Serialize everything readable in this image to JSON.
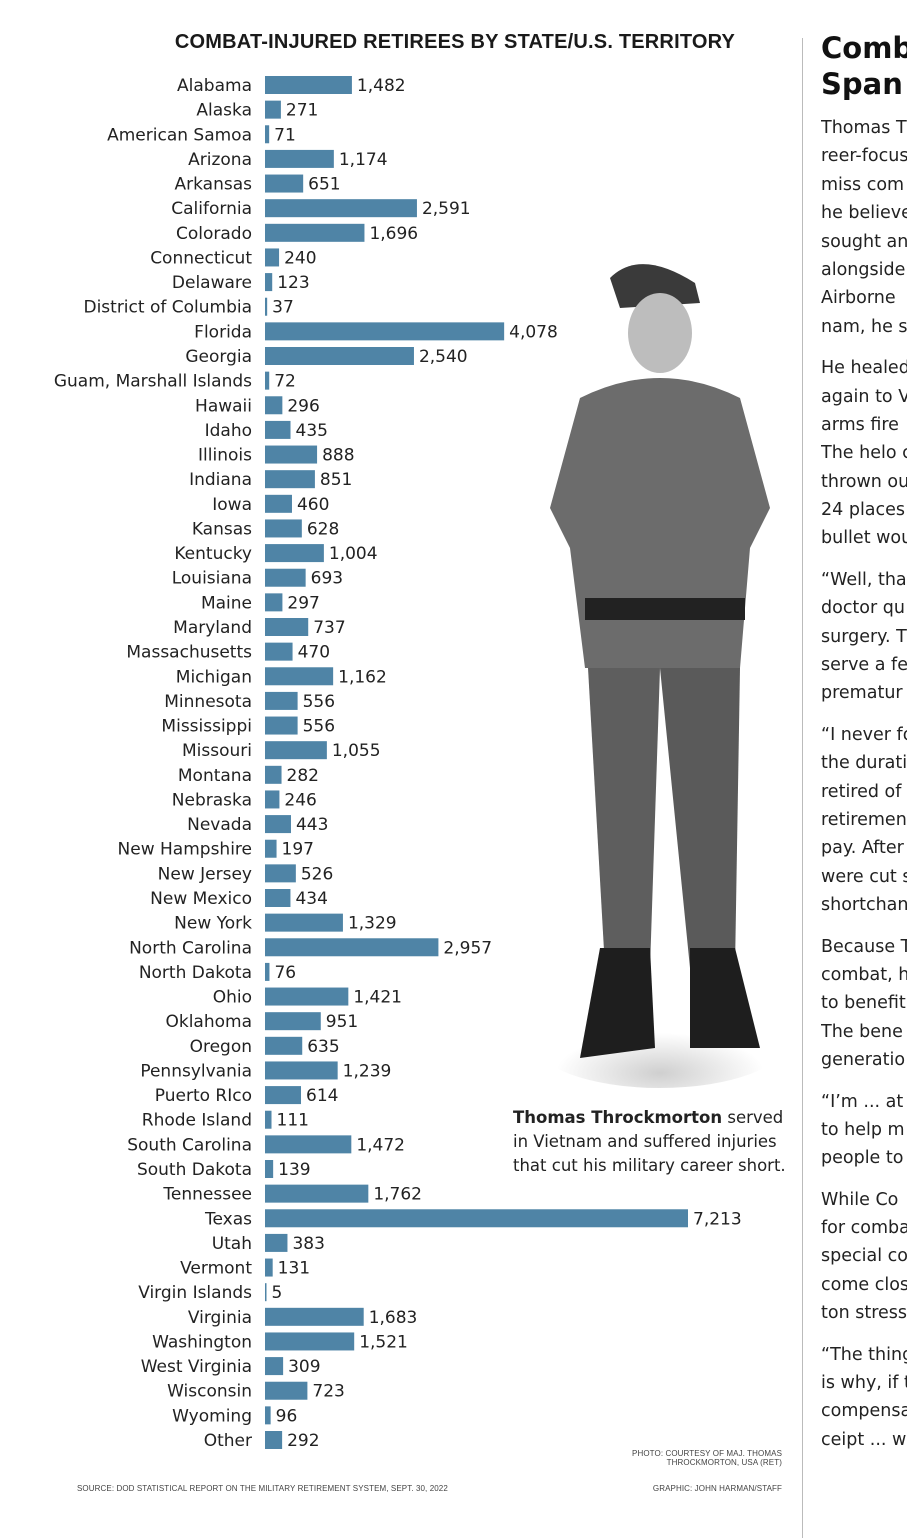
{
  "chart_data": {
    "type": "bar",
    "orientation": "horizontal",
    "title": "COMBAT-INJURED RETIREES BY STATE/U.S. TERRITORY",
    "bar_color": "#4f84a6",
    "categories": [
      "Alabama",
      "Alaska",
      "American Samoa",
      "Arizona",
      "Arkansas",
      "California",
      "Colorado",
      "Connecticut",
      "Delaware",
      "District of Columbia",
      "Florida",
      "Georgia",
      "Guam, Marshall Islands",
      "Hawaii",
      "Idaho",
      "Illinois",
      "Indiana",
      "Iowa",
      "Kansas",
      "Kentucky",
      "Louisiana",
      "Maine",
      "Maryland",
      "Massachusetts",
      "Michigan",
      "Minnesota",
      "Mississippi",
      "Missouri",
      "Montana",
      "Nebraska",
      "Nevada",
      "New Hampshire",
      "New Jersey",
      "New Mexico",
      "New York",
      "North Carolina",
      "North Dakota",
      "Ohio",
      "Oklahoma",
      "Oregon",
      "Pennsylvania",
      "Puerto RIco",
      "Rhode Island",
      "South Carolina",
      "South Dakota",
      "Tennessee",
      "Texas",
      "Utah",
      "Vermont",
      "Virgin Islands",
      "Virginia",
      "Washington",
      "West Virginia",
      "Wisconsin",
      "Wyoming",
      "Other"
    ],
    "values": [
      1482,
      271,
      71,
      1174,
      651,
      2591,
      1696,
      240,
      123,
      37,
      4078,
      2540,
      72,
      296,
      435,
      888,
      851,
      460,
      628,
      1004,
      693,
      297,
      737,
      470,
      1162,
      556,
      556,
      1055,
      282,
      246,
      443,
      197,
      526,
      434,
      1329,
      2957,
      76,
      1421,
      951,
      635,
      1239,
      614,
      111,
      1472,
      139,
      1762,
      7213,
      383,
      131,
      5,
      1683,
      1521,
      309,
      723,
      96,
      292
    ],
    "value_labels": [
      "1,482",
      "271",
      "71",
      "1,174",
      "651",
      "2,591",
      "1,696",
      "240",
      "123",
      "37",
      "4,078",
      "2,540",
      "72",
      "296",
      "435",
      "888",
      "851",
      "460",
      "628",
      "1,004",
      "693",
      "297",
      "737",
      "470",
      "1,162",
      "556",
      "556",
      "1,055",
      "282",
      "246",
      "443",
      "197",
      "526",
      "434",
      "1,329",
      "2,957",
      "76",
      "1,421",
      "951",
      "635",
      "1,239",
      "614",
      "111",
      "1,472",
      "139",
      "1,762",
      "7,213",
      "383",
      "131",
      "5",
      "1,683",
      "1,521",
      "309",
      "723",
      "96",
      "292"
    ]
  },
  "photo": {
    "caption_name": "Thomas Throckmorton",
    "caption_rest": " served in Vietnam and suffered injuries that cut his military career short.",
    "credit_line1": "PHOTO: COURTESY OF MAJ. THOMAS",
    "credit_line2": "THROCKMORTON, USA (RET)"
  },
  "source": "SOURCE: DOD STATISTICAL REPORT ON THE MILITARY RETIREMENT SYSTEM, SEPT. 30, 2022",
  "graphic_credit": "GRAPHIC: JOHN HARMAN/STAFF",
  "article": {
    "headline": [
      "Comba",
      "Span C"
    ],
    "paragraphs": [
      [
        "Thomas T",
        "reer-focus",
        "miss com",
        "he believe",
        "sought an",
        "alongside",
        "Airborne",
        "nam, he s"
      ],
      [
        "He healed",
        "again to V",
        "arms fire",
        "The helo c",
        "thrown ou",
        "24 places",
        "bullet wou"
      ],
      [
        "“Well, tha",
        "doctor qu",
        "surgery. T",
        "serve a fe",
        "prematur"
      ],
      [
        "“I never fo",
        "the durati",
        "retired of",
        "retiremen",
        "pay. After",
        "were cut s",
        "shortchan"
      ],
      [
        "Because T",
        "combat, h",
        "to benefit",
        "The bene",
        "generatio"
      ],
      [
        "“I’m ... at t",
        "to help m",
        "people to"
      ],
      [
        "While Co",
        "for comba",
        "special co",
        "come clos",
        "ton stress"
      ],
      [
        "“The thing",
        "is why, if t",
        "compensa",
        "ceipt ... w"
      ]
    ]
  }
}
